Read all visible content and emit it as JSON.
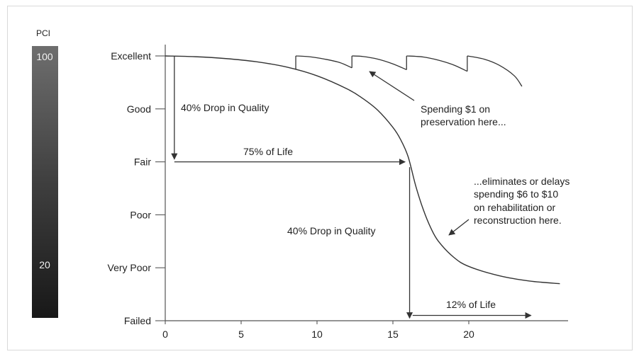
{
  "chart_data": {
    "type": "line",
    "xlabel": "",
    "ylabel": "",
    "xlim": [
      0,
      26
    ],
    "ylim": [
      0,
      100
    ],
    "x_ticks": [
      0,
      5,
      10,
      15,
      20
    ],
    "condition_labels": [
      {
        "label": "Excellent",
        "pci": 100
      },
      {
        "label": "Good",
        "pci": 80
      },
      {
        "label": "Fair",
        "pci": 60
      },
      {
        "label": "Poor",
        "pci": 40
      },
      {
        "label": "Very Poor",
        "pci": 20
      },
      {
        "label": "Failed",
        "pci": 0
      }
    ],
    "pci_scale": {
      "title": "PCI",
      "top": "100",
      "bottom_marker": "20"
    },
    "series": [
      {
        "x": [
          0,
          2,
          4,
          6,
          8,
          10,
          12,
          13,
          14,
          15,
          15.5,
          16,
          16.5,
          17,
          17.5,
          18,
          19,
          20,
          22,
          24,
          26
        ],
        "y": [
          100,
          99.7,
          99,
          97.8,
          95.8,
          92.5,
          87.5,
          84,
          79.5,
          73,
          68.5,
          62,
          51,
          42,
          35,
          30,
          24,
          20.5,
          17,
          15,
          14
        ]
      }
    ],
    "preservation_segments": [
      {
        "x": [
          8.6,
          9.5,
          10.5,
          11.5,
          12.3
        ],
        "y": [
          100,
          99.7,
          98.8,
          97.5,
          95.5
        ]
      },
      {
        "x": [
          12.3,
          13,
          14,
          15,
          15.9
        ],
        "y": [
          100,
          99.8,
          98.8,
          97,
          94.8
        ]
      },
      {
        "x": [
          15.9,
          17,
          18,
          19,
          19.9
        ],
        "y": [
          100,
          99.6,
          98.4,
          96.6,
          94.2
        ]
      },
      {
        "x": [
          19.9,
          21,
          22,
          23,
          23.5
        ],
        "y": [
          100,
          98.8,
          96.5,
          92.5,
          88.5
        ]
      }
    ],
    "annotations": {
      "drop1": "40% Drop in Quality",
      "life75": "75% of Life",
      "drop2": "40% Drop in Quality",
      "life12": "12% of Life",
      "spend_line1": "Spending $1 on",
      "spend_line2": "preservation here...",
      "elim_line1": "...eliminates or delays",
      "elim_line2": "spending $6 to $10",
      "elim_line3": "on rehabilitation or",
      "elim_line4": "reconstruction here."
    }
  }
}
